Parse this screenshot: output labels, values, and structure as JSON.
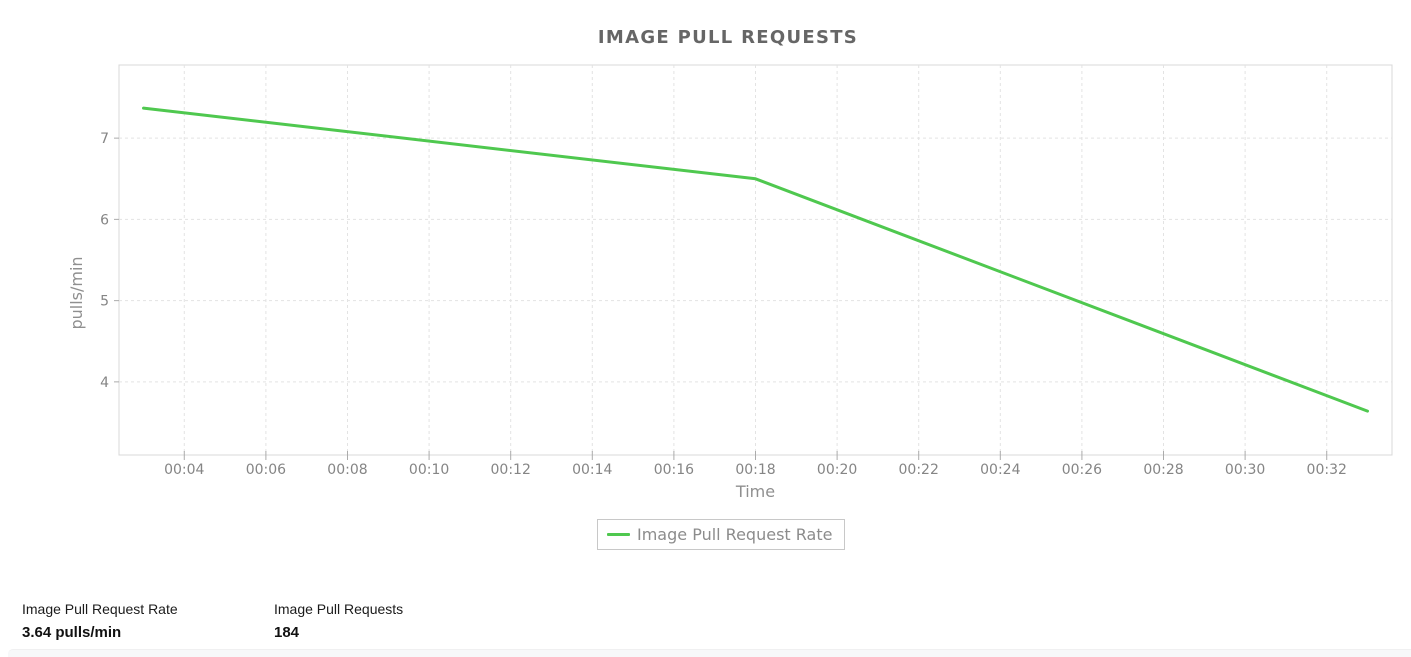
{
  "chart_data": {
    "type": "line",
    "title": "IMAGE PULL REQUESTS",
    "xlabel": "Time",
    "ylabel": "pulls/min",
    "x_tick_labels": [
      "00:04",
      "00:06",
      "00:08",
      "00:10",
      "00:12",
      "00:14",
      "00:16",
      "00:18",
      "00:20",
      "00:22",
      "00:24",
      "00:26",
      "00:28",
      "00:30",
      "00:32"
    ],
    "y_tick_values": [
      4,
      5,
      6,
      7
    ],
    "xlim_minutes": [
      2.4,
      33.6
    ],
    "ylim": [
      3.1,
      7.9
    ],
    "grid": true,
    "legend_position": "bottom",
    "series": [
      {
        "name": "Image Pull Request Rate",
        "color": "#4fc84f",
        "points": [
          {
            "time": "00:03",
            "minutes": 3,
            "value": 7.37
          },
          {
            "time": "00:18",
            "minutes": 18,
            "value": 6.5
          },
          {
            "time": "00:33",
            "minutes": 33,
            "value": 3.64
          }
        ]
      }
    ],
    "colors": {
      "grid_line": "#e3e3e3",
      "plot_border": "#d8d8d8",
      "tick_mark": "#ababab",
      "tick_text": "#858585",
      "axis_title_text": "#8f8f8f"
    }
  },
  "stats": {
    "items": [
      {
        "label": "Image Pull Request Rate",
        "value": "3.64 pulls/min"
      },
      {
        "label": "Image Pull Requests",
        "value": "184"
      }
    ]
  }
}
